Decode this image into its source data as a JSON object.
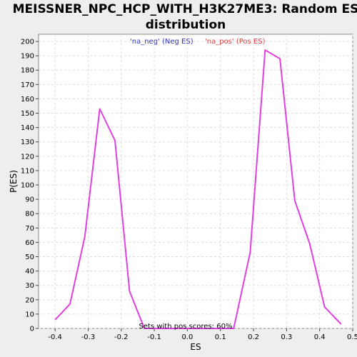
{
  "chart_data": {
    "type": "line",
    "title_line1": "MEISSNER_NPC_HCP_WITH_H3K27ME3: Random ES",
    "title_line2": "distribution",
    "xlabel": "ES",
    "ylabel": "P(ES)",
    "xlim": [
      -0.45,
      0.5
    ],
    "ylim": [
      0,
      205
    ],
    "x_ticks": [
      -0.4,
      -0.3,
      -0.2,
      -0.1,
      0.0,
      0.1,
      0.2,
      0.3,
      0.4,
      0.5
    ],
    "x_tick_labels": [
      "-0.4",
      "-0.3",
      "-0.2",
      "-0.1",
      "0.0",
      "0.1",
      "0.2",
      "0.3",
      "0.4",
      "0.5"
    ],
    "y_ticks": [
      0,
      10,
      20,
      30,
      40,
      50,
      60,
      70,
      80,
      90,
      100,
      110,
      120,
      130,
      140,
      150,
      160,
      170,
      180,
      190,
      200
    ],
    "grid": true,
    "legend": [
      {
        "label": "'na_neg' (Neg ES)",
        "color": "#3333cc"
      },
      {
        "label": "'na_pos' (Pos ES)",
        "color": "#e04040"
      }
    ],
    "annotation": "Sets with pos scores: 60%",
    "series": [
      {
        "color": "#e040e0",
        "x": [
          -0.4,
          -0.355,
          -0.31,
          -0.265,
          -0.219,
          -0.175,
          -0.13,
          -0.085,
          -0.04,
          0.005,
          0.05,
          0.095,
          0.14,
          0.19,
          0.235,
          0.28,
          0.325,
          0.37,
          0.415,
          0.465
        ],
        "y": [
          6,
          17,
          64,
          153,
          131,
          26,
          0,
          0,
          0,
          0,
          0,
          0,
          0,
          53,
          194,
          188,
          89,
          59,
          15,
          3
        ]
      }
    ]
  }
}
